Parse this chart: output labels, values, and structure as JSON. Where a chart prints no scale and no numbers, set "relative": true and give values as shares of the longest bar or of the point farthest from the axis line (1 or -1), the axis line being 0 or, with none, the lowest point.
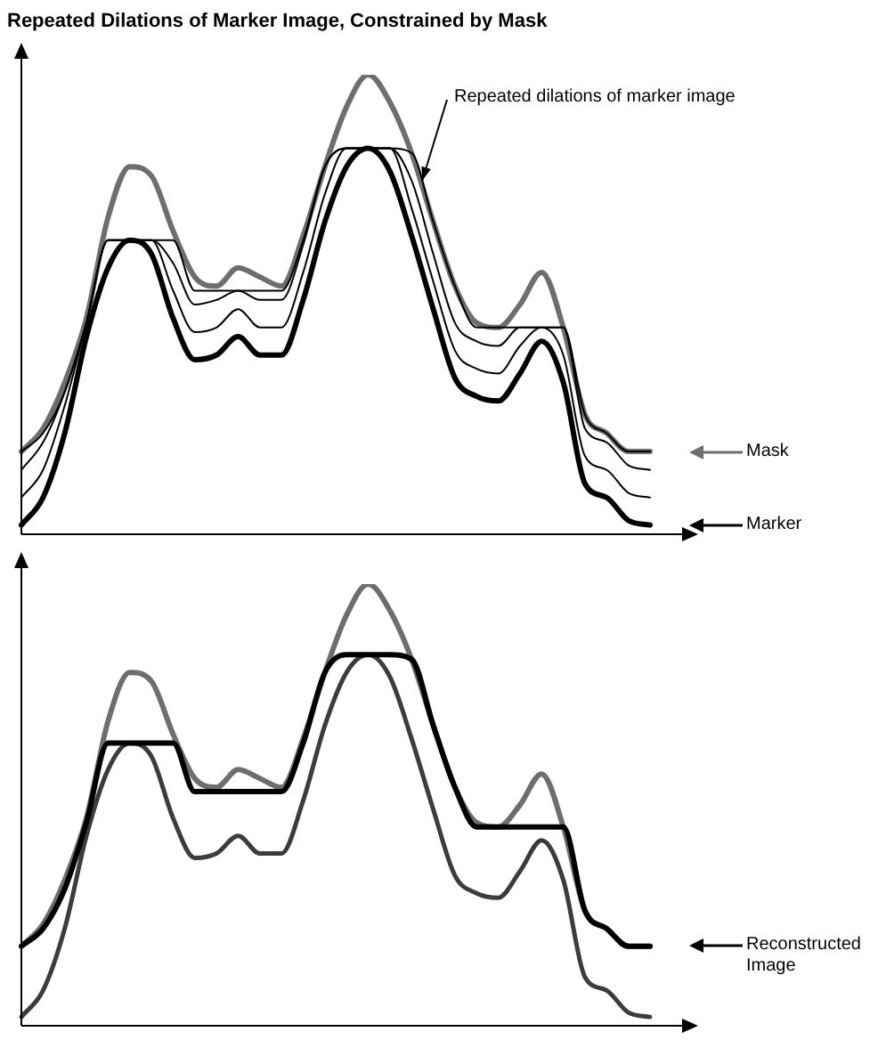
{
  "chart_data": [
    {
      "type": "line",
      "title": "Repeated Dilations of Marker Image, Constrained by Mask",
      "relative": true,
      "legend": "right",
      "categories": [
        null,
        null,
        null,
        null,
        null,
        null,
        null,
        null,
        null,
        null,
        null,
        null,
        null,
        null,
        null,
        null,
        null,
        null,
        null,
        null,
        null,
        null,
        null,
        null,
        null,
        null,
        null,
        null,
        null,
        null
      ],
      "series": [
        {
          "name": "Mask",
          "color": "#6e6e6e",
          "values": [
            0.18,
            0.23,
            0.33,
            0.47,
            0.69,
            0.8,
            0.78,
            0.66,
            0.56,
            0.54,
            0.58,
            0.56,
            0.54,
            0.65,
            0.8,
            0.93,
            1.0,
            0.94,
            0.83,
            0.68,
            0.54,
            0.46,
            0.45,
            0.5,
            0.57,
            0.45,
            0.26,
            0.22,
            0.18,
            0.18
          ]
        },
        {
          "color": "#000000",
          "values": [
            0.18,
            0.22,
            0.31,
            0.46,
            0.64,
            0.64,
            0.64,
            0.64,
            0.53,
            0.53,
            0.53,
            0.53,
            0.53,
            0.64,
            0.8,
            0.84,
            0.84,
            0.84,
            0.83,
            0.68,
            0.54,
            0.45,
            0.45,
            0.45,
            0.45,
            0.45,
            0.26,
            0.22,
            0.18,
            0.18
          ]
        },
        {
          "color": "#000000",
          "values": [
            0.14,
            0.2,
            0.31,
            0.46,
            0.64,
            0.64,
            0.64,
            0.59,
            0.5,
            0.51,
            0.53,
            0.51,
            0.51,
            0.63,
            0.8,
            0.84,
            0.84,
            0.84,
            0.77,
            0.61,
            0.46,
            0.42,
            0.41,
            0.45,
            0.45,
            0.45,
            0.23,
            0.2,
            0.15,
            0.14
          ]
        },
        {
          "color": "#000000",
          "values": [
            0.08,
            0.14,
            0.28,
            0.46,
            0.64,
            0.64,
            0.64,
            0.53,
            0.44,
            0.45,
            0.49,
            0.45,
            0.45,
            0.57,
            0.74,
            0.84,
            0.84,
            0.84,
            0.71,
            0.55,
            0.4,
            0.36,
            0.35,
            0.41,
            0.45,
            0.39,
            0.17,
            0.14,
            0.09,
            0.08
          ]
        },
        {
          "name": "Marker",
          "color": "#000000",
          "values": [
            0.02,
            0.08,
            0.22,
            0.43,
            0.58,
            0.64,
            0.61,
            0.47,
            0.38,
            0.39,
            0.43,
            0.39,
            0.39,
            0.51,
            0.68,
            0.8,
            0.84,
            0.79,
            0.65,
            0.49,
            0.34,
            0.3,
            0.29,
            0.35,
            0.42,
            0.33,
            0.11,
            0.08,
            0.03,
            0.02
          ]
        }
      ],
      "annotations": [
        "Repeated dilations of marker image"
      ]
    },
    {
      "type": "line",
      "relative": true,
      "legend": "right",
      "categories": [
        null,
        null,
        null,
        null,
        null,
        null,
        null,
        null,
        null,
        null,
        null,
        null,
        null,
        null,
        null,
        null,
        null,
        null,
        null,
        null,
        null,
        null,
        null,
        null,
        null,
        null,
        null,
        null,
        null,
        null
      ],
      "series": [
        {
          "color": "#6e6e6e",
          "values": [
            0.18,
            0.23,
            0.33,
            0.47,
            0.69,
            0.8,
            0.78,
            0.66,
            0.56,
            0.54,
            0.58,
            0.56,
            0.54,
            0.65,
            0.8,
            0.93,
            1.0,
            0.94,
            0.83,
            0.68,
            0.54,
            0.46,
            0.45,
            0.5,
            0.57,
            0.45,
            0.26,
            0.22,
            0.18,
            0.18
          ]
        },
        {
          "color": "#3c3c3c",
          "values": [
            0.02,
            0.08,
            0.22,
            0.43,
            0.58,
            0.64,
            0.61,
            0.47,
            0.38,
            0.39,
            0.43,
            0.39,
            0.39,
            0.51,
            0.68,
            0.8,
            0.84,
            0.79,
            0.65,
            0.49,
            0.34,
            0.3,
            0.29,
            0.35,
            0.42,
            0.33,
            0.11,
            0.08,
            0.03,
            0.02
          ]
        },
        {
          "name": "Reconstructed Image",
          "color": "#000000",
          "values": [
            0.18,
            0.22,
            0.31,
            0.46,
            0.64,
            0.64,
            0.64,
            0.64,
            0.53,
            0.53,
            0.53,
            0.53,
            0.53,
            0.64,
            0.8,
            0.84,
            0.84,
            0.84,
            0.83,
            0.68,
            0.54,
            0.45,
            0.45,
            0.45,
            0.45,
            0.45,
            0.26,
            0.22,
            0.18,
            0.18
          ]
        }
      ]
    }
  ]
}
